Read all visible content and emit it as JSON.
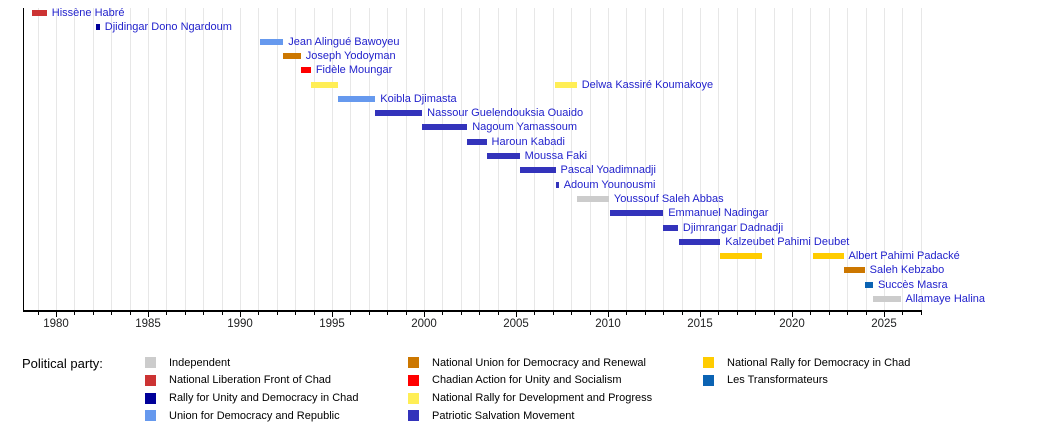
{
  "chart_data": {
    "type": "bar",
    "subtype": "horizontal-timeline-gantt",
    "title": "",
    "xlabel": "",
    "ylabel": "",
    "grid": "vertical-yearly",
    "text_color": "#2222cc",
    "axis": {
      "start": 1978.2,
      "end": 2027.05,
      "major_ticks": [
        1980,
        1985,
        1990,
        1995,
        2000,
        2005,
        2010,
        2015,
        2020,
        2025
      ],
      "minor_tick_step": 1
    },
    "parties": {
      "independent": {
        "label": "Independent",
        "color": "#cccccc"
      },
      "nlf": {
        "label": "National Liberation Front of Chad",
        "color": "#cc3333"
      },
      "rudc": {
        "label": "Rally for Unity and Democracy in Chad",
        "color": "#000099"
      },
      "udr": {
        "label": "Union for Democracy and Republic",
        "color": "#6699ee"
      },
      "nudr": {
        "label": "National Union for Democracy and Renewal",
        "color": "#cc7700"
      },
      "caus": {
        "label": "Chadian Action for Unity and Socialism",
        "color": "#ff0000"
      },
      "nrdp": {
        "label": "National Rally for Development and Progress",
        "color": "#ffee55"
      },
      "psm": {
        "label": "Patriotic Salvation Movement",
        "color": "#3333bb"
      },
      "rndt": {
        "label": "National Rally for Democracy in Chad",
        "color": "#ffcc00"
      },
      "transformateurs": {
        "label": "Les Transformateurs",
        "color": "#0b63b3"
      }
    },
    "people": [
      {
        "name": "Hissène Habré",
        "party": "nlf",
        "terms": [
          [
            1978.7,
            1979.5
          ]
        ]
      },
      {
        "name": "Djidingar Dono Ngardoum",
        "party": "rudc",
        "terms": [
          [
            1982.2,
            1982.38
          ]
        ]
      },
      {
        "name": "Jean Alingué Bawoyeu",
        "party": "udr",
        "terms": [
          [
            1991.1,
            1992.35
          ]
        ]
      },
      {
        "name": "Joseph Yodoyman",
        "party": "nudr",
        "terms": [
          [
            1992.35,
            1993.3
          ]
        ]
      },
      {
        "name": "Fidèle Moungar",
        "party": "caus",
        "terms": [
          [
            1993.3,
            1993.85
          ]
        ]
      },
      {
        "name": "Delwa Kassiré Koumakoye",
        "party": "nrdp",
        "terms": [
          [
            1993.85,
            1995.3
          ],
          [
            2007.1,
            2008.3
          ]
        ]
      },
      {
        "name": "Koibla Djimasta",
        "party": "udr",
        "terms": [
          [
            1995.3,
            1997.35
          ]
        ]
      },
      {
        "name": "Nassour Guelendouksia Ouaido",
        "party": "psm",
        "terms": [
          [
            1997.35,
            1999.9
          ]
        ]
      },
      {
        "name": "Nagoum Yamassoum",
        "party": "psm",
        "terms": [
          [
            1999.9,
            2002.35
          ]
        ]
      },
      {
        "name": "Haroun Kabadi",
        "party": "psm",
        "terms": [
          [
            2002.35,
            2003.4
          ]
        ]
      },
      {
        "name": "Moussa Faki",
        "party": "psm",
        "terms": [
          [
            2003.4,
            2005.2
          ]
        ]
      },
      {
        "name": "Pascal Yoadimnadji",
        "party": "psm",
        "terms": [
          [
            2005.2,
            2007.15
          ]
        ]
      },
      {
        "name": "Adoum Younousmi",
        "party": "psm",
        "terms": [
          [
            2007.15,
            2007.32
          ]
        ]
      },
      {
        "name": "Youssouf Saleh Abbas",
        "party": "independent",
        "terms": [
          [
            2008.3,
            2010.05
          ]
        ]
      },
      {
        "name": "Emmanuel Nadingar",
        "party": "psm",
        "terms": [
          [
            2010.1,
            2013.0
          ]
        ]
      },
      {
        "name": "Djimrangar Dadnadji",
        "party": "psm",
        "terms": [
          [
            2013.0,
            2013.8
          ]
        ]
      },
      {
        "name": "Kalzeubet Pahimi Deubet",
        "party": "psm",
        "terms": [
          [
            2013.85,
            2016.1
          ]
        ]
      },
      {
        "name": "Albert Pahimi Padacké",
        "party": "rndt",
        "terms": [
          [
            2016.1,
            2018.35
          ],
          [
            2021.16,
            2022.8
          ]
        ]
      },
      {
        "name": "Saleh Kebzabo",
        "party": "nudr",
        "terms": [
          [
            2022.8,
            2023.95
          ]
        ]
      },
      {
        "name": "Succès Masra",
        "party": "transformateurs",
        "terms": [
          [
            2023.95,
            2024.4
          ]
        ]
      },
      {
        "name": "Allamaye Halina",
        "party": "independent",
        "terms": [
          [
            2024.4,
            2025.9
          ]
        ]
      }
    ]
  },
  "legend": {
    "title": "Political party:",
    "columns": [
      [
        "independent",
        "nlf",
        "rudc",
        "udr"
      ],
      [
        "nudr",
        "caus",
        "nrdp",
        "psm"
      ],
      [
        "rndt",
        "transformateurs"
      ]
    ]
  }
}
